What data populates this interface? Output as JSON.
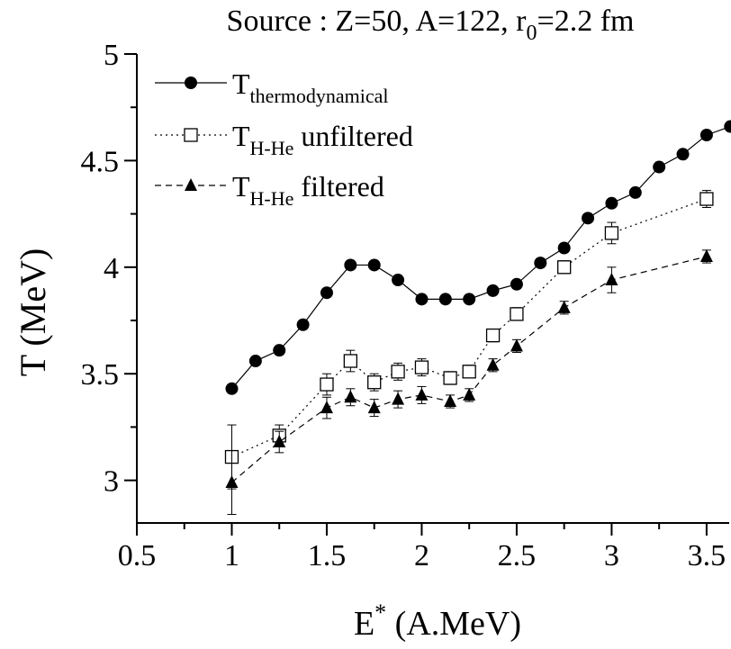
{
  "chart_data": {
    "type": "scatter",
    "title": {
      "main": "Source : Z=50, A=122, r",
      "sub": "0",
      "rest": "=2.2 fm"
    },
    "xlabel": {
      "main": "E",
      "sup": "*",
      "rest": " (A.MeV)"
    },
    "ylabel": "T (MeV)",
    "xlim": [
      0.5,
      3.6
    ],
    "ylim": [
      2.8,
      5.0
    ],
    "x_ticks": [
      "0.5",
      "1",
      "1.5",
      "2",
      "2.5",
      "3",
      "3.5"
    ],
    "y_ticks": [
      "3",
      "3.5",
      "4",
      "4.5",
      "5"
    ],
    "grid": false,
    "legend_position": "top-left",
    "series": [
      {
        "name": "T",
        "name_sub": "thermodynamical",
        "name_rest": "",
        "marker": "filled-circle",
        "line": "solid",
        "x": [
          1.0,
          1.125,
          1.25,
          1.375,
          1.5,
          1.625,
          1.75,
          1.875,
          2.0,
          2.125,
          2.25,
          2.375,
          2.5,
          2.625,
          2.75,
          2.875,
          3.0,
          3.125,
          3.25,
          3.375,
          3.5,
          3.625
        ],
        "y": [
          3.43,
          3.56,
          3.61,
          3.73,
          3.88,
          4.01,
          4.01,
          3.94,
          3.85,
          3.85,
          3.85,
          3.89,
          3.92,
          4.02,
          4.09,
          4.23,
          4.3,
          4.35,
          4.47,
          4.53,
          4.62,
          4.66
        ],
        "err": null
      },
      {
        "name": "T",
        "name_sub": "H-He",
        "name_rest": " unfiltered",
        "marker": "open-square",
        "line": "dotted",
        "x": [
          1.0,
          1.25,
          1.5,
          1.625,
          1.75,
          1.875,
          2.0,
          2.15,
          2.25,
          2.375,
          2.5,
          2.75,
          3.0,
          3.5
        ],
        "y": [
          3.11,
          3.21,
          3.45,
          3.56,
          3.46,
          3.51,
          3.53,
          3.48,
          3.51,
          3.68,
          3.78,
          4.0,
          4.16,
          4.32
        ],
        "err": [
          0.15,
          0.05,
          0.05,
          0.05,
          0.04,
          0.04,
          0.04,
          0.03,
          0.03,
          0.03,
          0.03,
          0.03,
          0.05,
          0.04
        ]
      },
      {
        "name": "T",
        "name_sub": "H-He",
        "name_rest": " filtered",
        "marker": "filled-triangle",
        "line": "dashed",
        "x": [
          1.0,
          1.25,
          1.5,
          1.625,
          1.75,
          1.875,
          2.0,
          2.15,
          2.25,
          2.375,
          2.5,
          2.75,
          3.0,
          3.5
        ],
        "y": [
          2.99,
          3.18,
          3.34,
          3.39,
          3.34,
          3.38,
          3.4,
          3.37,
          3.4,
          3.54,
          3.63,
          3.81,
          3.94,
          4.05
        ],
        "err": [
          0.15,
          0.05,
          0.05,
          0.04,
          0.04,
          0.04,
          0.04,
          0.03,
          0.03,
          0.03,
          0.03,
          0.03,
          0.06,
          0.03
        ]
      }
    ]
  }
}
